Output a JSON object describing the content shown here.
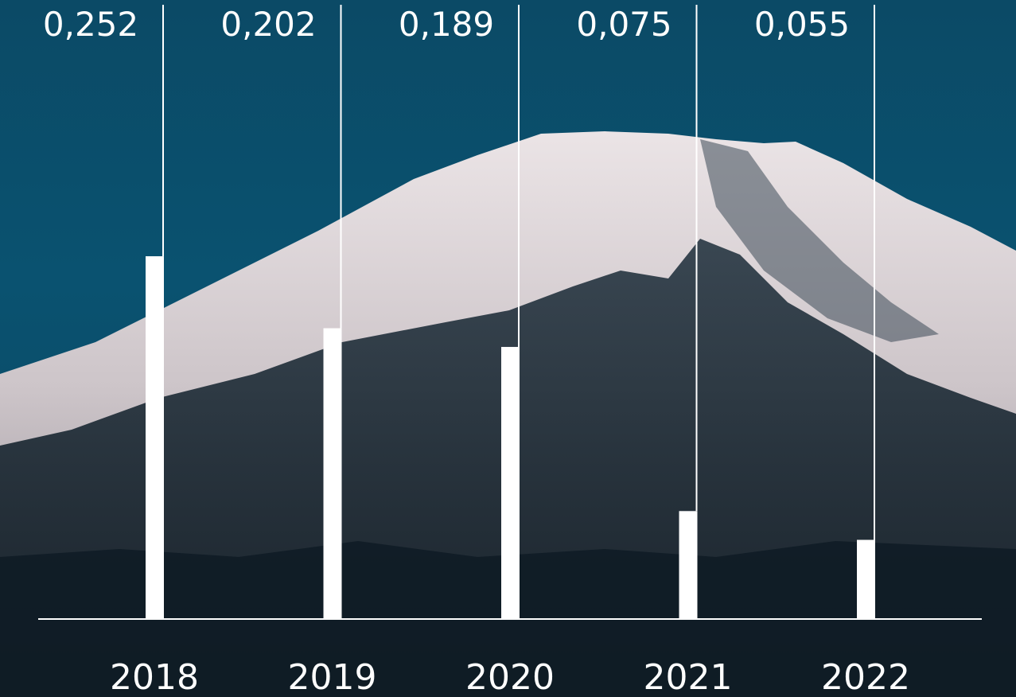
{
  "chart_data": {
    "type": "bar",
    "categories": [
      "2018",
      "2019",
      "2020",
      "2021",
      "2022"
    ],
    "values": [
      0.252,
      0.202,
      0.189,
      0.075,
      0.055
    ],
    "value_labels": [
      "0,252",
      "0,202",
      "0,189",
      "0,075",
      "0,055"
    ],
    "title": "",
    "xlabel": "",
    "ylabel": "",
    "ylim": [
      0,
      0.43
    ],
    "grid": false,
    "legend": "none"
  },
  "background": {
    "description_icon": "snow-capped-mountain-photo",
    "sky_color": "#0a5270",
    "snow_color": "#e0d9db",
    "rock_color": "#1c2a35"
  },
  "colors": {
    "bars": "#ffffff",
    "text": "#ffffff",
    "axis": "#ffffff"
  }
}
